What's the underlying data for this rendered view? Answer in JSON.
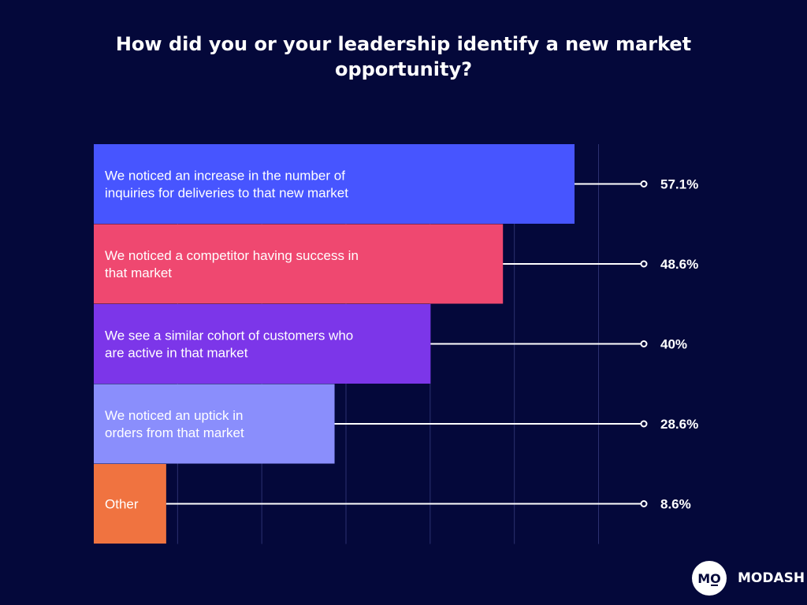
{
  "chart_data": {
    "type": "bar",
    "orientation": "horizontal",
    "title": "How did you or your leadership identify a new market opportunity?",
    "xlabel": "",
    "ylabel": "",
    "xlim": [
      0,
      60
    ],
    "categories": [
      " We noticed an increase in the number of\ninquiries for deliveries to that new market",
      "We noticed a competitor having success in\nthat market",
      "We see a similar cohort of customers who\nare active in that market",
      "We noticed an uptick in\norders from that market",
      "Other"
    ],
    "values": [
      57.1,
      48.6,
      40,
      28.6,
      8.6
    ],
    "value_labels": [
      "57.1%",
      "48.6%",
      "40%",
      "28.6%",
      "8.6%"
    ],
    "colors": [
      "#4755ff",
      "#ef4870",
      "#7c36e9",
      "#8a8efc",
      "#f07340"
    ],
    "grid": true
  },
  "brand": {
    "logo_text": "MO",
    "name": "MODASH"
  }
}
